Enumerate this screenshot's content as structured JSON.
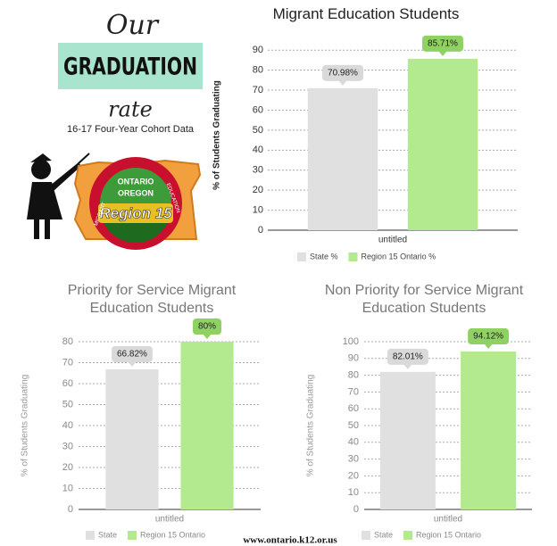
{
  "header": {
    "our": "Our",
    "graduation": "GRADUATION",
    "rate": "rate",
    "subtitle": "16-17 Four-Year Cohort Data"
  },
  "logo": {
    "ontario": "ONTARIO",
    "oregon": "OREGON",
    "region": "Region 15",
    "migrant": "MIGRANT",
    "education": "EDUCATION"
  },
  "footer": "www.ontario.k12.or.us",
  "chart_data": [
    {
      "type": "bar",
      "title": "Migrant Education Students",
      "y_label": "% of Students Graduating",
      "categories": [
        "untitled"
      ],
      "ylim": [
        0,
        95
      ],
      "yticks": [
        0,
        10,
        20,
        30,
        40,
        50,
        60,
        70,
        80,
        90
      ],
      "grid": true,
      "series": [
        {
          "name": "State %",
          "color": "#e0e0e0",
          "values": [
            70.98
          ],
          "value_labels": [
            "70.98%"
          ]
        },
        {
          "name": "Region 15 Ontario %",
          "color": "#b3ea8f",
          "values": [
            85.71
          ],
          "value_labels": [
            "85.71%"
          ]
        }
      ]
    },
    {
      "type": "bar",
      "title": "Priority for Service Migrant Education Students",
      "y_label": "% of Students Graduating",
      "categories": [
        "untitled"
      ],
      "ylim": [
        0,
        80
      ],
      "yticks": [
        0,
        10,
        20,
        30,
        40,
        50,
        60,
        70,
        80
      ],
      "grid": true,
      "series": [
        {
          "name": "State",
          "color": "#e0e0e0",
          "values": [
            66.82
          ],
          "value_labels": [
            "66.82%"
          ]
        },
        {
          "name": "Region 15 Ontario",
          "color": "#b3ea8f",
          "values": [
            80
          ],
          "value_labels": [
            "80%"
          ]
        }
      ]
    },
    {
      "type": "bar",
      "title": "Non Priority for Service Migrant Education Students",
      "y_label": "% of Students Graduating",
      "categories": [
        "untitled"
      ],
      "ylim": [
        0,
        100
      ],
      "yticks": [
        0,
        10,
        20,
        30,
        40,
        50,
        60,
        70,
        80,
        90,
        100
      ],
      "grid": true,
      "series": [
        {
          "name": "State",
          "color": "#e0e0e0",
          "values": [
            82.01
          ],
          "value_labels": [
            "82.01%"
          ]
        },
        {
          "name": "Region 15 Ontario",
          "color": "#b3ea8f",
          "values": [
            94.12
          ],
          "value_labels": [
            "94.12%"
          ]
        }
      ]
    }
  ]
}
